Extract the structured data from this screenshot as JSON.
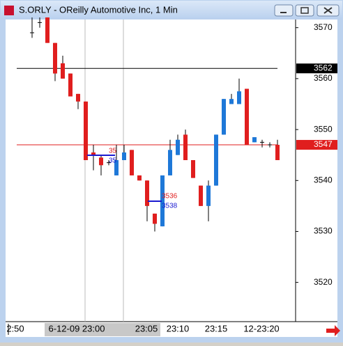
{
  "window": {
    "title": "S.ORLY - OReilly Automotive Inc, 1 Min"
  },
  "chart_data": {
    "type": "candlestick",
    "open": [
      3569,
      3571,
      3572,
      3567,
      3563,
      3561,
      3557,
      3555.5,
      3545.5,
      3544.5,
      3543.5,
      3541,
      3544,
      3546,
      3541,
      3540,
      3533.5,
      3531,
      3541,
      3545,
      3549,
      3544,
      3539,
      3535,
      3539,
      3549,
      3555,
      3555,
      3558,
      3547.5,
      3547.5,
      3547,
      3547
    ],
    "high": [
      3572,
      3572,
      3572,
      3567,
      3564.5,
      3561,
      3557,
      3555.5,
      3547,
      3545,
      3544,
      3547,
      3547,
      3546,
      3541,
      3540,
      3533.5,
      3541,
      3548,
      3549,
      3550,
      3544,
      3539,
      3540,
      3549,
      3556,
      3557,
      3560,
      3558,
      3548.5,
      3548,
      3547.5,
      3548
    ],
    "low": [
      3568,
      3570,
      3567,
      3559.5,
      3560,
      3556.5,
      3554,
      3544,
      3542,
      3541,
      3543,
      3541,
      3544,
      3541,
      3540,
      3532,
      3530,
      3531,
      3541,
      3545,
      3544,
      3540.5,
      3535,
      3532,
      3539,
      3549,
      3555,
      3555,
      3547,
      3547.5,
      3546.5,
      3546.5,
      3544
    ],
    "close": [
      3569,
      3571,
      3567,
      3561,
      3560,
      3556.5,
      3555.5,
      3544,
      3545,
      3543,
      3543.5,
      3544,
      3545.5,
      3541,
      3540,
      3535,
      3531.5,
      3541,
      3546,
      3548,
      3544,
      3540.5,
      3535,
      3539,
      3549,
      3556,
      3556,
      3557.5,
      3547,
      3548.5,
      3547.5,
      3547,
      3544
    ],
    "up_color": "#1e78d8",
    "down_color": "#e01e1e",
    "ylim": [
      3512.3,
      3571.6
    ],
    "yticks": [
      3520,
      3530,
      3540,
      3550,
      3560,
      3570
    ],
    "xticks": [
      "2:50",
      "6-12-09 23:00",
      "23:05",
      "23:10",
      "23:15",
      "12-23:20"
    ],
    "hlines": [
      {
        "value": 3562,
        "color": "#000000"
      },
      {
        "value": 3547,
        "color": "#e01e1e"
      }
    ],
    "annotations": [
      {
        "text": "35",
        "color": "#e01e1e"
      },
      {
        "text": "35",
        "color": "#1a1ad0"
      },
      {
        "text": "3536",
        "color": "#e01e1e"
      },
      {
        "text": "3538",
        "color": "#1a1ad0"
      }
    ]
  }
}
